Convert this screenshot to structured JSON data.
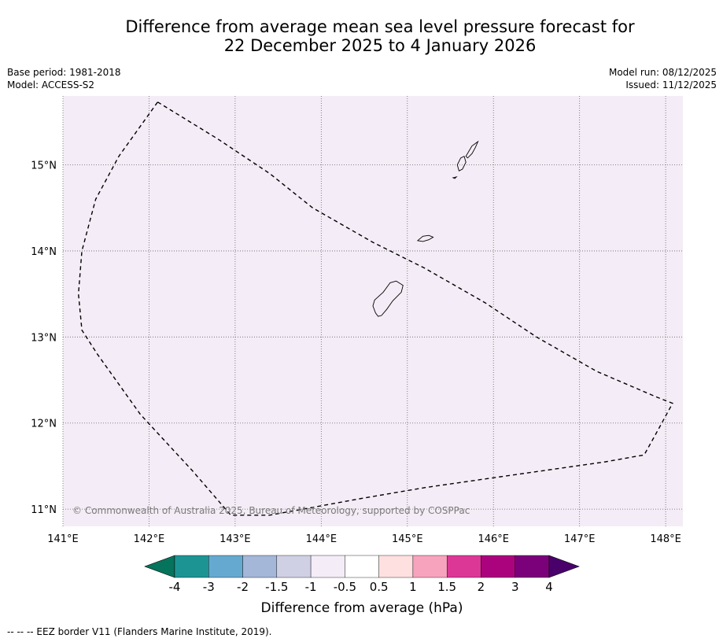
{
  "title": {
    "line1": "Difference from average mean sea level pressure forecast for",
    "line2": "22 December 2025 to 4 January 2026"
  },
  "meta": {
    "base_period": "Base period: 1981-2018",
    "model": "Model: ACCESS-S2",
    "model_run": "Model run: 08/12/2025",
    "issued": "Issued: 11/12/2025"
  },
  "map": {
    "lon_range": [
      141.0,
      148.2
    ],
    "lat_range": [
      10.8,
      15.8
    ],
    "lon_ticks": [
      141,
      142,
      143,
      144,
      145,
      146,
      147,
      148
    ],
    "lon_labels": [
      "141°E",
      "142°E",
      "143°E",
      "144°E",
      "145°E",
      "146°E",
      "147°E",
      "148°E"
    ],
    "lat_ticks": [
      15,
      14,
      13,
      12,
      11
    ],
    "lat_labels": [
      "15°N",
      "14°N",
      "13°N",
      "12°N",
      "11°N"
    ],
    "background_color": "#f4ecf6",
    "copyright": "© Commonwealth of Australia 2025, Bureau of Meteorology, supported by COSPPac",
    "eez_border": [
      [
        142.1,
        15.73
      ],
      [
        142.8,
        15.3
      ],
      [
        143.4,
        14.9
      ],
      [
        143.9,
        14.5
      ],
      [
        144.6,
        14.1
      ],
      [
        145.2,
        13.8
      ],
      [
        145.9,
        13.4
      ],
      [
        146.5,
        13.0
      ],
      [
        147.2,
        12.6
      ],
      [
        147.9,
        12.3
      ],
      [
        148.08,
        12.23
      ],
      [
        147.9,
        11.9
      ],
      [
        147.75,
        11.63
      ],
      [
        147.3,
        11.55
      ],
      [
        146.6,
        11.45
      ],
      [
        145.9,
        11.35
      ],
      [
        145.2,
        11.25
      ],
      [
        144.5,
        11.13
      ],
      [
        143.9,
        11.02
      ],
      [
        143.4,
        10.93
      ],
      [
        142.95,
        10.93
      ],
      [
        142.5,
        11.45
      ],
      [
        141.9,
        12.1
      ],
      [
        141.4,
        12.8
      ],
      [
        141.22,
        13.08
      ],
      [
        141.18,
        13.5
      ],
      [
        141.22,
        14.0
      ],
      [
        141.38,
        14.6
      ],
      [
        141.65,
        15.1
      ],
      [
        141.9,
        15.45
      ],
      [
        142.1,
        15.73
      ]
    ],
    "islands": [
      {
        "name": "Guam",
        "coords": [
          [
            144.62,
            13.43
          ],
          [
            144.72,
            13.52
          ],
          [
            144.8,
            13.63
          ],
          [
            144.87,
            13.65
          ],
          [
            144.95,
            13.6
          ],
          [
            144.93,
            13.52
          ],
          [
            144.83,
            13.42
          ],
          [
            144.76,
            13.32
          ],
          [
            144.7,
            13.25
          ],
          [
            144.66,
            13.24
          ],
          [
            144.63,
            13.28
          ],
          [
            144.6,
            13.36
          ],
          [
            144.62,
            13.43
          ]
        ]
      },
      {
        "name": "Rota",
        "coords": [
          [
            145.12,
            14.12
          ],
          [
            145.18,
            14.17
          ],
          [
            145.25,
            14.18
          ],
          [
            145.3,
            14.16
          ],
          [
            145.25,
            14.13
          ],
          [
            145.18,
            14.11
          ],
          [
            145.12,
            14.12
          ]
        ]
      },
      {
        "name": "Tinian",
        "coords": [
          [
            145.58,
            15.0
          ],
          [
            145.62,
            15.08
          ],
          [
            145.66,
            15.1
          ],
          [
            145.68,
            15.03
          ],
          [
            145.64,
            14.95
          ],
          [
            145.6,
            14.93
          ],
          [
            145.58,
            15.0
          ]
        ]
      },
      {
        "name": "Saipan",
        "coords": [
          [
            145.68,
            15.1
          ],
          [
            145.75,
            15.22
          ],
          [
            145.82,
            15.27
          ],
          [
            145.79,
            15.2
          ],
          [
            145.75,
            15.13
          ],
          [
            145.7,
            15.08
          ],
          [
            145.68,
            15.1
          ]
        ]
      },
      {
        "name": "Aguijan",
        "coords": [
          [
            145.53,
            14.85
          ],
          [
            145.57,
            14.86
          ],
          [
            145.55,
            14.84
          ],
          [
            145.53,
            14.85
          ]
        ]
      }
    ]
  },
  "colorbar": {
    "colors": [
      "#06735c",
      "#1c9494",
      "#66a9d0",
      "#a4b7d8",
      "#cfd0e4",
      "#f4ecf6",
      "#ffffff",
      "#fde0df",
      "#f8a3bd",
      "#dc3797",
      "#ab037e",
      "#7b017b",
      "#49006a"
    ],
    "tick_labels": [
      "-4",
      "-3",
      "-2",
      "-1.5",
      "-1",
      "-0.5",
      "0.5",
      "1",
      "1.5",
      "2",
      "3",
      "4"
    ],
    "label": "Difference from average (hPa)"
  },
  "footer": {
    "legend_text": "--  --  -- EEZ border V11 (Flanders Marine Institute, 2019)."
  }
}
